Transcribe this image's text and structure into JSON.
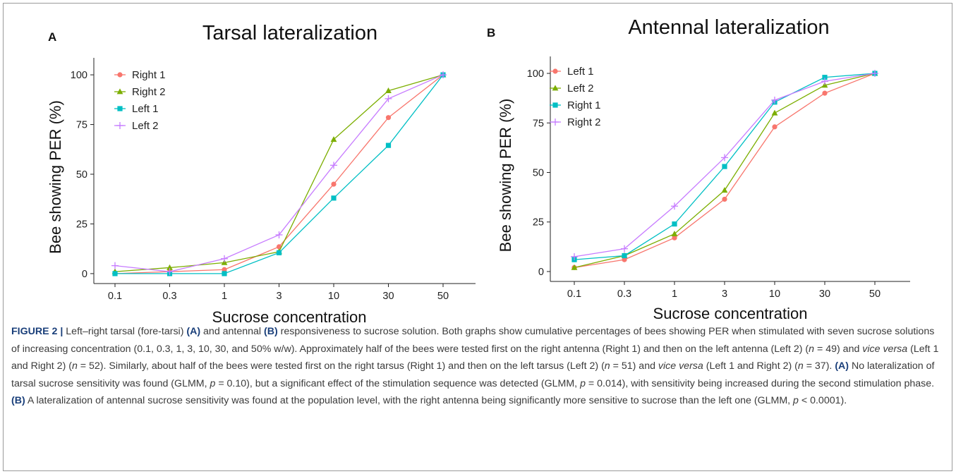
{
  "chart_data": [
    {
      "type": "line",
      "panel_label": "A",
      "title": "Tarsal lateralization",
      "xlabel": "Sucrose concentration",
      "ylabel": "Bee showing PER (%)",
      "categories": [
        "0.1",
        "0.3",
        "1",
        "3",
        "10",
        "30",
        "50"
      ],
      "yticks": [
        "0",
        "25",
        "50",
        "75",
        "100"
      ],
      "ylim": [
        -5,
        105
      ],
      "legend_position": "top-left",
      "series": [
        {
          "name": "Right 1",
          "color": "#F8766D",
          "marker": "circle",
          "values": [
            0,
            1,
            2,
            13.5,
            45,
            78.5,
            100
          ]
        },
        {
          "name": "Right 2",
          "color": "#7CAE00",
          "marker": "triangle",
          "values": [
            1,
            3,
            5.5,
            11,
            67.5,
            92,
            100
          ]
        },
        {
          "name": "Left 1",
          "color": "#00BFC4",
          "marker": "square",
          "values": [
            0,
            0,
            0,
            10.5,
            38,
            64.5,
            100
          ]
        },
        {
          "name": "Left 2",
          "color": "#C77CFF",
          "marker": "plus",
          "values": [
            4,
            1,
            7.5,
            19.5,
            54.5,
            88,
            100
          ]
        }
      ]
    },
    {
      "type": "line",
      "panel_label": "B",
      "title": "Antennal lateralization",
      "xlabel": "Sucrose concentration",
      "ylabel": "Bee showing PER (%)",
      "categories": [
        "0.1",
        "0.3",
        "1",
        "3",
        "10",
        "30",
        "50"
      ],
      "yticks": [
        "0",
        "25",
        "50",
        "75",
        "100"
      ],
      "ylim": [
        -5,
        105
      ],
      "legend_position": "top-left",
      "series": [
        {
          "name": "Left 1",
          "color": "#F8766D",
          "marker": "circle",
          "values": [
            2,
            6,
            17,
            36.5,
            73,
            90,
            100
          ]
        },
        {
          "name": "Left 2",
          "color": "#7CAE00",
          "marker": "triangle",
          "values": [
            2,
            8,
            19,
            41,
            80,
            94,
            100
          ]
        },
        {
          "name": "Right 1",
          "color": "#00BFC4",
          "marker": "square",
          "values": [
            6,
            8,
            24,
            53,
            85.5,
            98,
            100
          ]
        },
        {
          "name": "Right 2",
          "color": "#C77CFF",
          "marker": "plus",
          "values": [
            7.5,
            11.5,
            33,
            57.5,
            86.5,
            96,
            100
          ]
        }
      ]
    }
  ],
  "caption": {
    "figure_label": "FIGURE 2 |",
    "line1_a": " Left–right tarsal (fore-tarsi) ",
    "ref_a1": "(A)",
    "line1_b": " and antennal ",
    "ref_b1": "(B)",
    "line1_c": " responsiveness to sucrose solution. Both graphs show cumulative percentages of bees showing PER when stimulated with seven sucrose solutions of increasing concentration (0.1, 0.3, 1, 3, 10, 30, and 50% w/w). Approximately half of the bees were tested first on the right antenna (Right 1) and then on the left antenna (Left 2) (",
    "n_sym_1": "n",
    "n_val_1": " = 49) and ",
    "vice_versa_1": "vice versa",
    "line1_d": " (Left 1 and Right 2) (",
    "n_sym_2": "n",
    "n_val_2": " = 52). Similarly, about half of the bees were tested first on the right tarsus (Right 1) and then on the left tarsus (Left 2) (",
    "n_sym_3": "n",
    "n_val_3": " = 51) and ",
    "vice_versa_2": "vice versa",
    "line1_e": " (Left 1 and Right 2) (",
    "n_sym_4": "n",
    "n_val_4": " = 37). ",
    "ref_a2": "(A)",
    "line2_a": " No lateralization of tarsal sucrose sensitivity was found (GLMM, ",
    "p_sym_1": "p",
    "p_val_1": " = 0.10), but a significant effect of the stimulation sequence was detected (GLMM, ",
    "p_sym_2": "p",
    "p_val_2": " = 0.014), with sensitivity being increased during the second stimulation phase. ",
    "ref_b2": "(B)",
    "line3_a": " A lateralization of antennal sucrose sensitivity was found at the population level, with the right antenna being significantly more sensitive to sucrose than the left one (GLMM, ",
    "p_sym_3": "p",
    "p_val_3": " < 0.0001)."
  }
}
